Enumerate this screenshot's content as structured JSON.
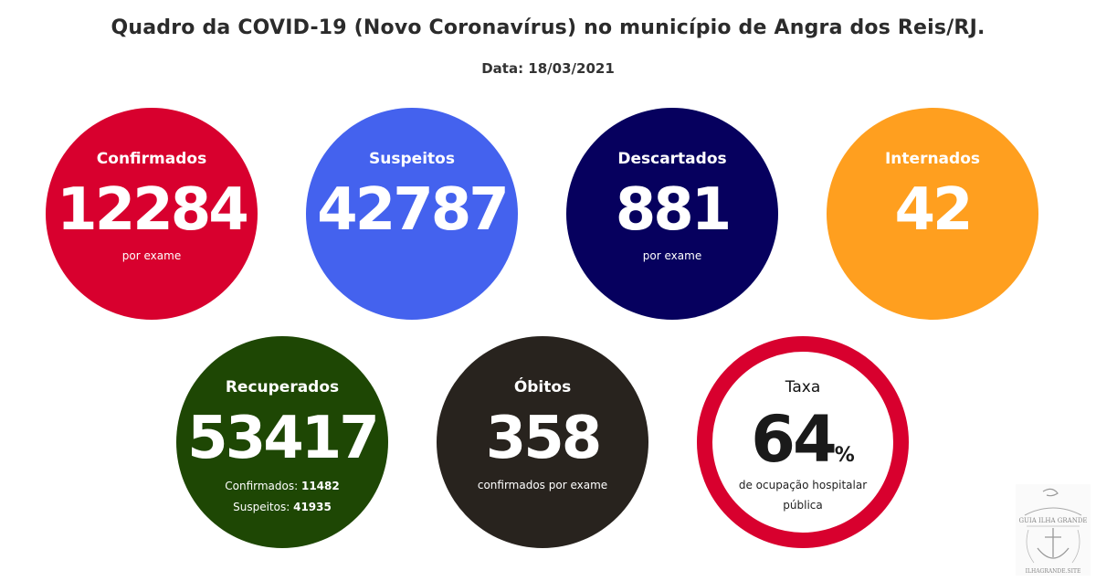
{
  "header": {
    "title": "Quadro da COVID-19 (Novo Coronavírus) no município de Angra dos Reis/RJ.",
    "date": "Data: 18/03/2021"
  },
  "stats": {
    "confirmados": {
      "label": "Confirmados",
      "value": "12284",
      "note": "por exame"
    },
    "suspeitos": {
      "label": "Suspeitos",
      "value": "42787"
    },
    "descartados": {
      "label": "Descartados",
      "value": "881",
      "note": "por exame"
    },
    "internados": {
      "label": "Internados",
      "value": "42"
    },
    "recuperados": {
      "label": "Recuperados",
      "value": "53417",
      "sub1_label": "Confirmados:",
      "sub1_value": "11482",
      "sub2_label": "Suspeitos:",
      "sub2_value": "41935"
    },
    "obitos": {
      "label": "Óbitos",
      "value": "358",
      "note": "confirmados por exame"
    },
    "taxa": {
      "label": "Taxa",
      "value": "64",
      "unit": "%",
      "desc_line1": "de ocupação hospitalar",
      "desc_line2": "pública"
    }
  },
  "watermark": {
    "text_top": "GUIA ILHA GRANDE",
    "text_bottom": "ILHAGRANDE.SITE"
  },
  "colors": {
    "confirmados": "#d8002e",
    "suspeitos": "#4462ee",
    "descartados": "#06005e",
    "internados": "#ff9f1f",
    "recuperados": "#1e4704",
    "obitos": "#28231e",
    "taxa_ring": "#d8002e"
  }
}
